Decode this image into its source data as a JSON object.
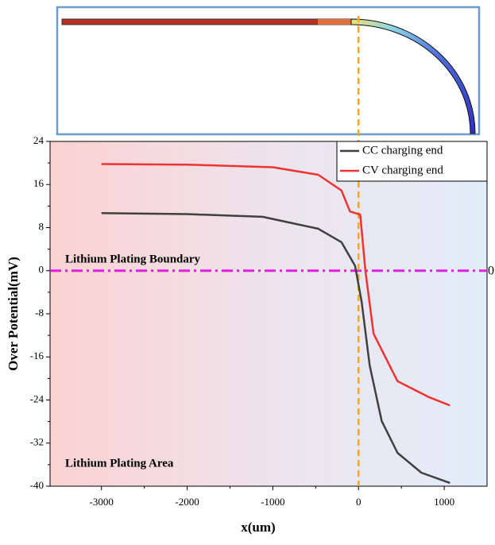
{
  "chart_data": {
    "type": "line",
    "x_label": "x(um)",
    "y_label": "Over Potential(mV)",
    "xlim": [
      -3600,
      1500
    ],
    "xticks": [
      -3000,
      -2000,
      -1000,
      0,
      1000
    ],
    "ylim": [
      -40,
      24
    ],
    "yticks": [
      24,
      16,
      8,
      0,
      -8,
      -16,
      -24,
      -32,
      -40
    ],
    "legend": "upper right",
    "annotations": [
      "Lithium Plating Boundary",
      "Lithium Plating Area"
    ],
    "boundary_value_label": "0",
    "series": [
      {
        "name": "CC charging end",
        "color": "#404040",
        "x": [
          -3000,
          -2000,
          -1120,
          -470,
          -200,
          -40,
          37,
          130,
          270,
          455,
          733,
          1067
        ],
        "values": [
          10.7,
          10.5,
          10,
          7.8,
          5.3,
          0.9,
          -5.8,
          -17.6,
          -27.9,
          -33.8,
          -37.5,
          -39.4
        ]
      },
      {
        "name": "CV charging end",
        "color": "#ee3333",
        "x": [
          -3000,
          -2000,
          -1000,
          -470,
          -200,
          -100,
          20,
          80,
          176,
          455,
          826,
          1067
        ],
        "values": [
          19.8,
          19.7,
          19.2,
          17.8,
          14.9,
          11,
          10.4,
          0,
          -11.7,
          -20.5,
          -23.5,
          -25
        ]
      }
    ]
  }
}
